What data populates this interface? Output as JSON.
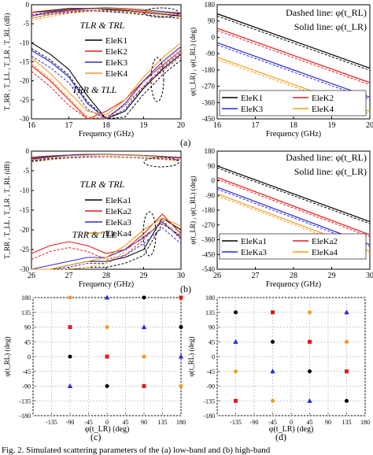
{
  "caption": "Fig. 2. Simulated scattering parameters of the (a) low-band and (b) high-band",
  "panel_labels": [
    "(a)",
    "(b)",
    "(c)",
    "(d)"
  ],
  "chart_data": [
    {
      "id": "a-left",
      "type": "line",
      "xlabel": "Frequency (GHz)",
      "ylabel": "T_RR , T_LL , T_LR , T_RL (dB)",
      "xlim": [
        16,
        20
      ],
      "ylim": [
        -30,
        0
      ],
      "xticks": [
        "16",
        "17",
        "18",
        "19",
        "20"
      ],
      "yticks": [
        "0",
        "-5",
        "-10",
        "-15",
        "-20",
        "-25",
        "-30"
      ],
      "legend": [
        "EleK1",
        "EleK2",
        "EleK3",
        "EleK4"
      ],
      "annotations": [
        "TLR & TRL",
        "TRR & TLL"
      ],
      "series": [
        {
          "name": "EleK1",
          "color": "#000000",
          "co": {
            "x": [
              16,
              16.5,
              17,
              17.5,
              18,
              18.5,
              19,
              19.5,
              20
            ],
            "y": [
              -2,
              -1.5,
              -1,
              -1,
              -1.2,
              -1.5,
              -2,
              -2.5,
              -3
            ]
          },
          "cross": {
            "x": [
              16,
              16.5,
              17,
              17.5,
              18,
              18.5,
              19,
              19.5,
              20
            ],
            "y": [
              -10,
              -13,
              -17,
              -24,
              -30,
              -28,
              -22,
              -17,
              -13
            ]
          }
        },
        {
          "name": "EleK2",
          "color": "#e41a1c",
          "co": {
            "x": [
              16,
              16.5,
              17,
              17.5,
              18,
              18.5,
              19,
              19.5,
              20
            ],
            "y": [
              -2,
              -1.8,
              -1.3,
              -1,
              -1,
              -1.2,
              -1.6,
              -2,
              -2.4
            ]
          },
          "cross": {
            "x": [
              16,
              16.5,
              17,
              17.5,
              18,
              18.5,
              19,
              19.5,
              20
            ],
            "y": [
              -16,
              -20,
              -25,
              -30,
              -28,
              -25,
              -20,
              -16,
              -12
            ]
          }
        },
        {
          "name": "EleK3",
          "color": "#2b2bd9",
          "co": {
            "x": [
              16,
              16.5,
              17,
              17.5,
              18,
              18.5,
              19,
              19.5,
              20
            ],
            "y": [
              -3,
              -2,
              -1.5,
              -1,
              -0.8,
              -1,
              -1.3,
              -1.8,
              -2.2
            ]
          },
          "cross": {
            "x": [
              16,
              16.5,
              17,
              17.5,
              18,
              18.5,
              19,
              19.5,
              20
            ],
            "y": [
              -12,
              -15,
              -19,
              -26,
              -30,
              -26,
              -20,
              -15,
              -11
            ]
          }
        },
        {
          "name": "EleK4",
          "color": "#f59a1b",
          "co": {
            "x": [
              16,
              16.5,
              17,
              17.5,
              18,
              18.5,
              19,
              19.5,
              20
            ],
            "y": [
              -3.5,
              -2.5,
              -1.7,
              -1.2,
              -1,
              -1.1,
              -1.4,
              -2,
              -2.6
            ]
          },
          "cross": {
            "x": [
              16,
              16.5,
              17,
              17.5,
              18,
              18.5,
              19,
              19.5,
              20
            ],
            "y": [
              -14,
              -18,
              -23,
              -28,
              -29,
              -25,
              -19,
              -14,
              -10
            ]
          }
        }
      ]
    },
    {
      "id": "a-right",
      "type": "line",
      "xlabel": "Frequency (GHz)",
      "ylabel": "φ(t_LR) , φ(t_RL) (deg)",
      "xlim": [
        16,
        20
      ],
      "ylim": [
        -450,
        180
      ],
      "xticks": [
        "16",
        "17",
        "18",
        "19",
        "20"
      ],
      "yticks": [
        "180",
        "90",
        "0",
        "-90",
        "-180",
        "-270",
        "-360",
        "-450"
      ],
      "notes": [
        "Dashed line: φ(t_RL)",
        "Solid line: φ(t_LR)"
      ],
      "legend": [
        "EleK1",
        "EleK2",
        "EleK3",
        "EleK4"
      ],
      "series": [
        {
          "name": "EleK1",
          "color": "#000000",
          "x": [
            16,
            20
          ],
          "y": [
            130,
            -170
          ]
        },
        {
          "name": "EleK2",
          "color": "#e41a1c",
          "x": [
            16,
            20
          ],
          "y": [
            50,
            -250
          ]
        },
        {
          "name": "EleK3",
          "color": "#2b2bd9",
          "x": [
            16,
            20
          ],
          "y": [
            -30,
            -330
          ]
        },
        {
          "name": "EleK4",
          "color": "#f59a1b",
          "x": [
            16,
            20
          ],
          "y": [
            -110,
            -410
          ]
        }
      ]
    },
    {
      "id": "b-left",
      "type": "line",
      "xlabel": "Frequency (GHz)",
      "ylabel": "T_RR , T_LL , T_LR , T_RL (dB)",
      "xlim": [
        26,
        30
      ],
      "ylim": [
        -30,
        0
      ],
      "xticks": [
        "26",
        "27",
        "28",
        "29",
        "30"
      ],
      "yticks": [
        "0",
        "-5",
        "-10",
        "-15",
        "-20",
        "-25",
        "-30"
      ],
      "legend": [
        "EleKa1",
        "EleKa2",
        "EleKa3",
        "EleKa4"
      ],
      "annotations": [
        "TLR & TRL",
        "TRR & TLL"
      ],
      "series": [
        {
          "name": "EleKa1",
          "color": "#000000",
          "co": {
            "x": [
              26,
              26.5,
              27,
              27.5,
              28,
              28.5,
              29,
              29.5,
              30
            ],
            "y": [
              -2,
              -1.5,
              -1,
              -0.8,
              -0.8,
              -1,
              -1.2,
              -1.5,
              -1.8
            ]
          },
          "cross": {
            "x": [
              26,
              26.5,
              27,
              27.5,
              28,
              28.5,
              29,
              29.5,
              30
            ],
            "y": [
              -30,
              -30,
              -29,
              -28,
              -28,
              -27,
              -25,
              -17,
              -20
            ]
          }
        },
        {
          "name": "EleKa2",
          "color": "#e41a1c",
          "co": {
            "x": [
              26,
              26.5,
              27,
              27.5,
              28,
              28.5,
              29,
              29.5,
              30
            ],
            "y": [
              -1.5,
              -1.2,
              -1,
              -0.9,
              -0.9,
              -1,
              -1.1,
              -1.3,
              -1.6
            ]
          },
          "cross": {
            "x": [
              26,
              26.5,
              27,
              27.5,
              28,
              28.5,
              29,
              29.5,
              30
            ],
            "y": [
              -26,
              -24,
              -23,
              -24,
              -26,
              -25,
              -21,
              -16,
              -21
            ]
          }
        },
        {
          "name": "EleKa3",
          "color": "#2b2bd9",
          "co": {
            "x": [
              26,
              26.5,
              27,
              27.5,
              28,
              28.5,
              29,
              29.5,
              30
            ],
            "y": [
              -1.8,
              -1.3,
              -1,
              -0.8,
              -0.8,
              -0.9,
              -1.1,
              -1.4,
              -1.7
            ]
          },
          "cross": {
            "x": [
              26,
              26.5,
              27,
              27.5,
              28,
              28.5,
              29,
              29.5,
              30
            ],
            "y": [
              -30,
              -29,
              -28,
              -27,
              -27,
              -25,
              -22,
              -18,
              -22
            ]
          }
        },
        {
          "name": "EleKa4",
          "color": "#f59a1b",
          "co": {
            "x": [
              26,
              26.5,
              27,
              27.5,
              28,
              28.5,
              29,
              29.5,
              30
            ],
            "y": [
              -2.2,
              -1.6,
              -1.2,
              -1,
              -0.9,
              -1,
              -1.2,
              -1.5,
              -1.9
            ]
          },
          "cross": {
            "x": [
              26,
              26.5,
              27,
              27.5,
              28,
              28.5,
              29,
              29.5,
              30
            ],
            "y": [
              -30,
              -30,
              -29,
              -28,
              -27,
              -24,
              -20,
              -17,
              -19
            ]
          }
        }
      ]
    },
    {
      "id": "b-right",
      "type": "line",
      "xlabel": "Frequency (GHz)",
      "ylabel": "φ(t_LR) , φ(t_RL) (deg)",
      "xlim": [
        26,
        30
      ],
      "ylim": [
        -540,
        180
      ],
      "xticks": [
        "26",
        "27",
        "28",
        "29",
        "30"
      ],
      "yticks": [
        "180",
        "90",
        "0",
        "-90",
        "-180",
        "-270",
        "-360",
        "-450",
        "-540"
      ],
      "notes": [
        "Dashed line: φ(t_RL)",
        "Solid line: φ(t_LR)"
      ],
      "legend": [
        "EleKa1",
        "EleKa2",
        "EleKa3",
        "EleKa4"
      ],
      "series": [
        {
          "name": "EleKa1",
          "color": "#000000",
          "x": [
            26,
            30
          ],
          "y": [
            90,
            -250
          ]
        },
        {
          "name": "EleKa2",
          "color": "#e41a1c",
          "x": [
            26,
            30
          ],
          "y": [
            20,
            -330
          ]
        },
        {
          "name": "EleKa3",
          "color": "#2b2bd9",
          "x": [
            26,
            30
          ],
          "y": [
            -40,
            -390
          ]
        },
        {
          "name": "EleKa4",
          "color": "#f59a1b",
          "x": [
            26,
            30
          ],
          "y": [
            -80,
            -430
          ]
        }
      ]
    },
    {
      "id": "c",
      "type": "scatter",
      "xlabel": "φ(t_LR) (deg)",
      "ylabel": "φ(t_RL) (deg)",
      "xlim": [
        -180,
        180
      ],
      "ylim": [
        -180,
        180
      ],
      "xticks": [
        "-180",
        "-135",
        "-90",
        "-45",
        "0",
        "45",
        "90",
        "135",
        "180"
      ],
      "yticks": [
        "180",
        "135",
        "90",
        "45",
        "0",
        "-45",
        "-90",
        "-135",
        "-180"
      ],
      "points": [
        {
          "x": -90,
          "y": 180,
          "color": "#f59a1b",
          "marker": "circle"
        },
        {
          "x": -90,
          "y": 90,
          "color": "#e41a1c",
          "marker": "square"
        },
        {
          "x": -90,
          "y": 0,
          "color": "#000000",
          "marker": "circle"
        },
        {
          "x": -90,
          "y": -90,
          "color": "#2b2bd9",
          "marker": "triangle"
        },
        {
          "x": 0,
          "y": 180,
          "color": "#2b2bd9",
          "marker": "triangle"
        },
        {
          "x": 0,
          "y": 90,
          "color": "#f59a1b",
          "marker": "circle"
        },
        {
          "x": 0,
          "y": 0,
          "color": "#e41a1c",
          "marker": "square"
        },
        {
          "x": 0,
          "y": -90,
          "color": "#000000",
          "marker": "circle"
        },
        {
          "x": 90,
          "y": 180,
          "color": "#000000",
          "marker": "circle"
        },
        {
          "x": 90,
          "y": 90,
          "color": "#2b2bd9",
          "marker": "triangle"
        },
        {
          "x": 90,
          "y": 0,
          "color": "#f59a1b",
          "marker": "circle"
        },
        {
          "x": 90,
          "y": -90,
          "color": "#e41a1c",
          "marker": "square"
        },
        {
          "x": 180,
          "y": 180,
          "color": "#e41a1c",
          "marker": "square"
        },
        {
          "x": 180,
          "y": 90,
          "color": "#000000",
          "marker": "circle"
        },
        {
          "x": 180,
          "y": 0,
          "color": "#2b2bd9",
          "marker": "triangle"
        },
        {
          "x": 180,
          "y": -90,
          "color": "#f59a1b",
          "marker": "circle"
        }
      ]
    },
    {
      "id": "d",
      "type": "scatter",
      "xlabel": "φ(t_LR) (deg)",
      "ylabel": "φ(t_RL) (deg)",
      "xlim": [
        -180,
        180
      ],
      "ylim": [
        -180,
        180
      ],
      "xticks": [
        "-180",
        "-135",
        "-90",
        "-45",
        "0",
        "45",
        "90",
        "135",
        "180"
      ],
      "yticks": [
        "180",
        "135",
        "90",
        "45",
        "0",
        "-45",
        "-90",
        "-135",
        "-180"
      ],
      "points": [
        {
          "x": -135,
          "y": 135,
          "color": "#000000",
          "marker": "circle"
        },
        {
          "x": -135,
          "y": 45,
          "color": "#2b2bd9",
          "marker": "triangle"
        },
        {
          "x": -135,
          "y": -45,
          "color": "#f59a1b",
          "marker": "circle"
        },
        {
          "x": -135,
          "y": -135,
          "color": "#e41a1c",
          "marker": "square"
        },
        {
          "x": -45,
          "y": 135,
          "color": "#e41a1c",
          "marker": "square"
        },
        {
          "x": -45,
          "y": 45,
          "color": "#000000",
          "marker": "circle"
        },
        {
          "x": -45,
          "y": -45,
          "color": "#2b2bd9",
          "marker": "triangle"
        },
        {
          "x": -45,
          "y": -135,
          "color": "#f59a1b",
          "marker": "circle"
        },
        {
          "x": 45,
          "y": 135,
          "color": "#f59a1b",
          "marker": "circle"
        },
        {
          "x": 45,
          "y": 45,
          "color": "#e41a1c",
          "marker": "square"
        },
        {
          "x": 45,
          "y": -45,
          "color": "#000000",
          "marker": "circle"
        },
        {
          "x": 45,
          "y": -135,
          "color": "#2b2bd9",
          "marker": "triangle"
        },
        {
          "x": 135,
          "y": 135,
          "color": "#2b2bd9",
          "marker": "triangle"
        },
        {
          "x": 135,
          "y": 45,
          "color": "#f59a1b",
          "marker": "circle"
        },
        {
          "x": 135,
          "y": -45,
          "color": "#e41a1c",
          "marker": "square"
        },
        {
          "x": 135,
          "y": -135,
          "color": "#000000",
          "marker": "circle"
        }
      ]
    }
  ]
}
